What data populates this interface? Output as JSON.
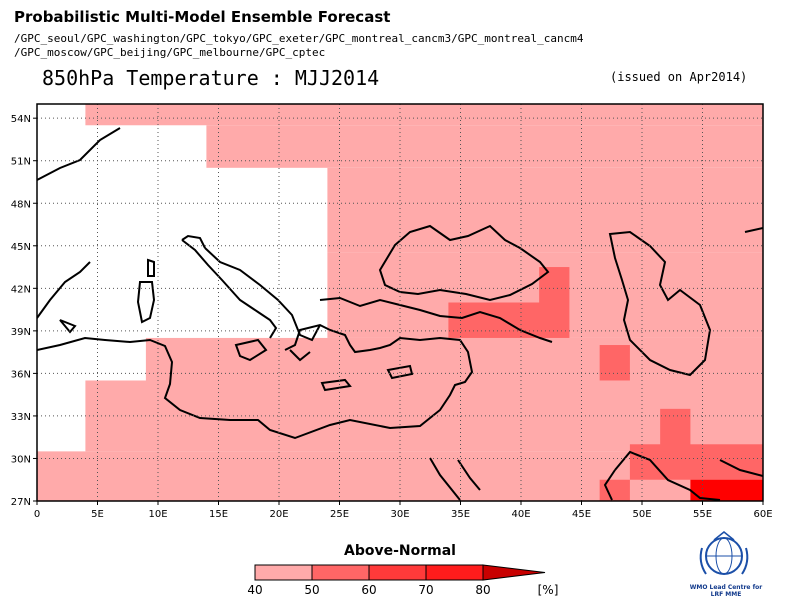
{
  "header": {
    "title": "Probabilistic Multi-Model Ensemble Forecast",
    "models_line1": "/GPC_seoul/GPC_washington/GPC_tokyo/GPC_exeter/GPC_montreal_cancm3/GPC_montreal_cancm4",
    "models_line2": "/GPC_moscow/GPC_beijing/GPC_melbourne/GPC_cptec",
    "variable": "850hPa Temperature : MJJ2014",
    "issued": "(issued on Apr2014)"
  },
  "map": {
    "lon_range": [
      0,
      60
    ],
    "lat_range": [
      27,
      55
    ],
    "lon_ticks": [
      "0",
      "5E",
      "10E",
      "15E",
      "20E",
      "25E",
      "30E",
      "35E",
      "40E",
      "45E",
      "50E",
      "55E",
      "60E"
    ],
    "lat_ticks": [
      "27N",
      "30N",
      "33N",
      "36N",
      "39N",
      "42N",
      "45N",
      "48N",
      "51N",
      "54N"
    ],
    "gridlines": "dotted",
    "probability_cells": [
      {
        "lon": [
          4,
          60
        ],
        "lat": [
          53.5,
          55
        ],
        "category": "40-50"
      },
      {
        "lon": [
          14,
          60
        ],
        "lat": [
          50.5,
          53.5
        ],
        "category": "40-50"
      },
      {
        "lon": [
          24,
          60
        ],
        "lat": [
          44.5,
          50.5
        ],
        "category": "40-50"
      },
      {
        "lon": [
          24,
          60
        ],
        "lat": [
          38.5,
          44.5
        ],
        "category": "40-50"
      },
      {
        "lon": [
          9,
          60
        ],
        "lat": [
          35.5,
          38.5
        ],
        "category": "40-50"
      },
      {
        "lon": [
          4,
          60
        ],
        "lat": [
          30.5,
          35.5
        ],
        "category": "40-50"
      },
      {
        "lon": [
          0,
          60
        ],
        "lat": [
          27,
          30.5
        ],
        "category": "40-50"
      },
      {
        "lon": [
          34,
          44
        ],
        "lat": [
          38.5,
          41
        ],
        "category": "50-60"
      },
      {
        "lon": [
          41.5,
          44
        ],
        "lat": [
          41,
          43.5
        ],
        "category": "50-60"
      },
      {
        "lon": [
          46.5,
          49
        ],
        "lat": [
          35.5,
          38
        ],
        "category": "50-60"
      },
      {
        "lon": [
          51.5,
          54
        ],
        "lat": [
          30.5,
          33.5
        ],
        "category": "50-60"
      },
      {
        "lon": [
          49,
          60
        ],
        "lat": [
          28.5,
          31
        ],
        "category": "50-60"
      },
      {
        "lon": [
          46.5,
          49
        ],
        "lat": [
          27,
          28.5
        ],
        "category": "50-60"
      },
      {
        "lon": [
          54,
          60
        ],
        "lat": [
          27,
          28.5
        ],
        "category": "70-80"
      }
    ]
  },
  "colorbar": {
    "title": "Above-Normal",
    "labels": [
      "40",
      "50",
      "60",
      "70",
      "80"
    ],
    "unit": "[%]",
    "colors": [
      "#ffaaaa",
      "#ff6666",
      "#ff3a3a",
      "#ff1c1c",
      "#ff0000",
      "#c80000"
    ]
  },
  "logo": {
    "text_line1": "WMO Lead Centre for",
    "text_line2": "LRF MME"
  }
}
